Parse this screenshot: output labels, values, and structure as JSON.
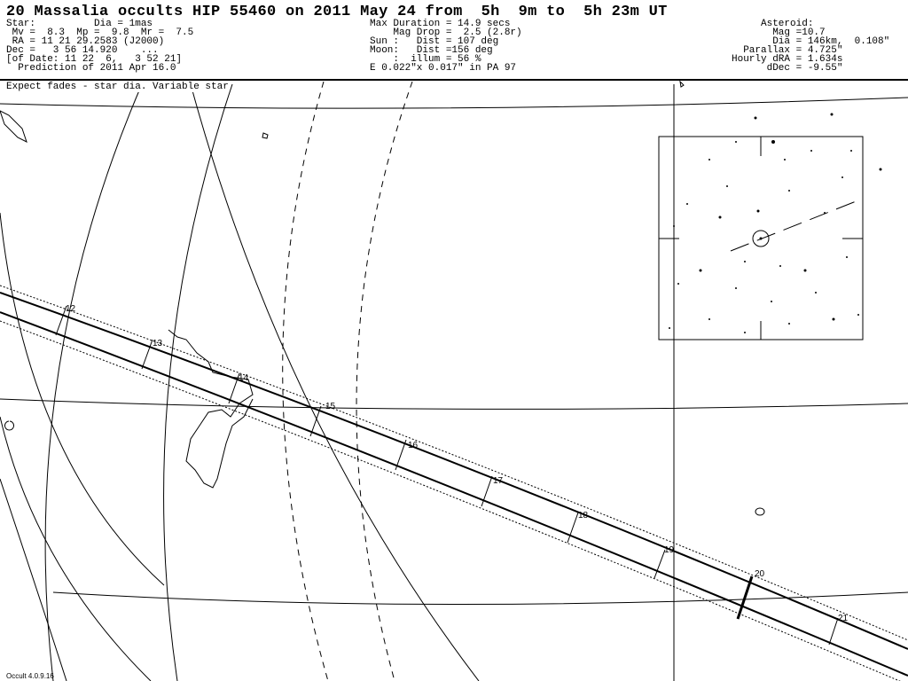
{
  "title": "20 Massalia occults HIP 55460 on 2011 May 24 from  5h  9m to  5h 23m UT",
  "star_block": [
    "Star:          Dia = 1mas",
    " Mv =  8.3  Mp =  9.8  Mr =  7.5",
    " RA = 11 21 29.2583 (J2000)",
    "Dec =   3 56 14.920    ...",
    "[of Date: 11 22  6,   3 52 21]",
    "  Prediction of 2011 Apr 16.0"
  ],
  "event_block": [
    "Max Duration = 14.9 secs",
    "    Mag Drop =  2.5 (2.8r)",
    "Sun :   Dist = 107 deg",
    "Moon:   Dist =156 deg",
    "    :  illum = 56 %",
    "E 0.022\"x 0.017\" in PA 97"
  ],
  "asteroid_block": [
    "     Asteroid:",
    "       Mag =10.7",
    "       Dia = 146km,  0.108\"",
    "  Parallax = 4.725\"",
    "Hourly dRA = 1.634s",
    "      dDec = -9.55\""
  ],
  "note": "Expect fades - star dia. Variable star",
  "version": "Occult 4.0.9.16",
  "time_marks": [
    "12",
    "13",
    "14",
    "15",
    "16",
    "17",
    "18",
    "19",
    "20",
    "21"
  ],
  "colors": {
    "ink": "#000000",
    "background": "#ffffff"
  }
}
